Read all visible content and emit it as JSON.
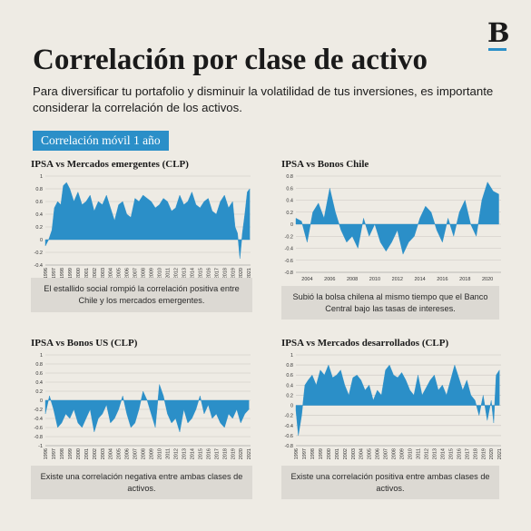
{
  "brand": {
    "logo_letter": "B",
    "accent": "#2b8fc8"
  },
  "header": {
    "title": "Correlación por clase de activo",
    "subtitle": "Para diversificar tu portafolio y disminuir la volatilidad de tus inversiones, es importante considerar la correlación de los activos.",
    "badge": "Correlación móvil 1 año"
  },
  "colors": {
    "bar": "#2b8fc8",
    "background": "#eeebe4",
    "note_bg": "#dcd9d3"
  },
  "notes": {
    "em": "El estallido social rompió la correlación positiva entre Chile y los mercados emergentes.",
    "chile": "Subió la bolsa chilena al mismo tiempo que el Banco Central bajo las tasas de intereses.",
    "us": "Existe una correlación negativa entre ambas clases de activos.",
    "dev": "Existe una correlación positiva entre ambas clases de activos."
  },
  "chart_data": [
    {
      "id": "em",
      "type": "area",
      "title": "IPSA vs Mercados emergentes (CLP)",
      "yticks": [
        -0.4,
        -0.2,
        0,
        0.2,
        0.4,
        0.6,
        0.8,
        1
      ],
      "ylim": [
        -0.4,
        1
      ],
      "xlim": [
        1996,
        2021.2
      ],
      "xticks": [
        "1996",
        "1997",
        "1998",
        "1999",
        "2000",
        "2001",
        "2002",
        "2003",
        "2004",
        "2005",
        "2006",
        "2007",
        "2008",
        "2009",
        "2010",
        "2011",
        "2012",
        "2013",
        "2014",
        "2015",
        "2016",
        "2017",
        "2018",
        "2019",
        "2020",
        "2021"
      ],
      "x": [
        1996.0,
        1996.4,
        1996.8,
        1997.1,
        1997.5,
        1997.9,
        1998.2,
        1998.6,
        1999.0,
        1999.5,
        2000.0,
        2000.5,
        2001.0,
        2001.5,
        2002.0,
        2002.5,
        2003.0,
        2003.5,
        2004.0,
        2004.5,
        2005.0,
        2005.5,
        2006.0,
        2006.5,
        2007.0,
        2007.5,
        2008.0,
        2008.5,
        2009.0,
        2009.5,
        2010.0,
        2010.5,
        2011.0,
        2011.5,
        2012.0,
        2012.5,
        2013.0,
        2013.5,
        2014.0,
        2014.5,
        2015.0,
        2015.5,
        2016.0,
        2016.5,
        2017.0,
        2017.5,
        2018.0,
        2018.5,
        2019.0,
        2019.3,
        2019.6,
        2019.9,
        2020.2,
        2020.5,
        2020.8,
        2021.1
      ],
      "values": [
        -0.1,
        0.0,
        0.15,
        0.5,
        0.6,
        0.55,
        0.85,
        0.9,
        0.8,
        0.6,
        0.75,
        0.55,
        0.6,
        0.7,
        0.45,
        0.6,
        0.55,
        0.7,
        0.5,
        0.3,
        0.55,
        0.6,
        0.4,
        0.35,
        0.65,
        0.6,
        0.7,
        0.65,
        0.6,
        0.5,
        0.55,
        0.65,
        0.6,
        0.45,
        0.5,
        0.7,
        0.55,
        0.6,
        0.75,
        0.55,
        0.5,
        0.6,
        0.65,
        0.45,
        0.4,
        0.6,
        0.7,
        0.5,
        0.6,
        0.2,
        0.1,
        -0.3,
        0.1,
        0.4,
        0.75,
        0.8
      ]
    },
    {
      "id": "chile",
      "type": "area",
      "title": "IPSA vs Bonos Chile",
      "yticks": [
        -0.8,
        -0.6,
        -0.4,
        -0.2,
        0,
        0.2,
        0.4,
        0.6,
        0.8
      ],
      "ylim": [
        -0.8,
        0.8
      ],
      "xlim": [
        2003,
        2021.2
      ],
      "xticks": [
        "2004",
        "2006",
        "2008",
        "2010",
        "2012",
        "2014",
        "2016",
        "2018",
        "2020"
      ],
      "xtick_values": [
        2004,
        2006,
        2008,
        2010,
        2012,
        2014,
        2016,
        2018,
        2020
      ],
      "x": [
        2003.0,
        2003.5,
        2004.0,
        2004.5,
        2005.0,
        2005.5,
        2006.0,
        2006.5,
        2007.0,
        2007.5,
        2008.0,
        2008.5,
        2009.0,
        2009.5,
        2010.0,
        2010.5,
        2011.0,
        2011.5,
        2012.0,
        2012.5,
        2013.0,
        2013.5,
        2014.0,
        2014.5,
        2015.0,
        2015.5,
        2016.0,
        2016.5,
        2017.0,
        2017.5,
        2018.0,
        2018.5,
        2019.0,
        2019.5,
        2020.0,
        2020.5,
        2021.0
      ],
      "values": [
        0.1,
        0.05,
        -0.3,
        0.2,
        0.35,
        0.1,
        0.6,
        0.2,
        -0.1,
        -0.3,
        -0.2,
        -0.4,
        0.1,
        -0.2,
        0.0,
        -0.3,
        -0.45,
        -0.3,
        -0.1,
        -0.5,
        -0.3,
        -0.2,
        0.1,
        0.3,
        0.2,
        -0.1,
        -0.3,
        0.1,
        -0.2,
        0.2,
        0.4,
        0.0,
        -0.2,
        0.4,
        0.7,
        0.55,
        0.5
      ]
    },
    {
      "id": "us",
      "type": "area",
      "title": "IPSA vs Bonos US (CLP)",
      "yticks": [
        -1,
        -0.8,
        -0.6,
        -0.4,
        -0.2,
        0,
        0.2,
        0.4,
        0.6,
        0.8,
        1
      ],
      "ylim": [
        -1,
        1
      ],
      "xlim": [
        1996,
        2021.2
      ],
      "xticks": [
        "1996",
        "1997",
        "1998",
        "1999",
        "2000",
        "2001",
        "2002",
        "2003",
        "2004",
        "2005",
        "2006",
        "2007",
        "2008",
        "2009",
        "2010",
        "2011",
        "2012",
        "2013",
        "2014",
        "2015",
        "2016",
        "2017",
        "2018",
        "2019",
        "2020",
        "2021"
      ],
      "x": [
        1996.0,
        1996.5,
        1997.0,
        1997.5,
        1998.0,
        1998.5,
        1999.0,
        1999.5,
        2000.0,
        2000.5,
        2001.0,
        2001.5,
        2002.0,
        2002.5,
        2003.0,
        2003.5,
        2004.0,
        2004.5,
        2005.0,
        2005.5,
        2006.0,
        2006.5,
        2007.0,
        2007.5,
        2008.0,
        2008.5,
        2009.0,
        2009.5,
        2010.0,
        2010.5,
        2011.0,
        2011.5,
        2012.0,
        2012.5,
        2013.0,
        2013.5,
        2014.0,
        2014.5,
        2015.0,
        2015.5,
        2016.0,
        2016.5,
        2017.0,
        2017.5,
        2018.0,
        2018.5,
        2019.0,
        2019.5,
        2020.0,
        2020.5,
        2021.0
      ],
      "values": [
        -0.3,
        0.1,
        -0.2,
        -0.6,
        -0.5,
        -0.3,
        -0.4,
        -0.2,
        -0.5,
        -0.6,
        -0.4,
        -0.2,
        -0.7,
        -0.4,
        -0.3,
        -0.1,
        -0.5,
        -0.4,
        -0.2,
        0.1,
        -0.3,
        -0.6,
        -0.5,
        -0.2,
        0.2,
        0.0,
        -0.3,
        -0.6,
        0.35,
        0.1,
        -0.3,
        -0.5,
        -0.4,
        -0.7,
        -0.2,
        -0.5,
        -0.4,
        -0.2,
        0.1,
        -0.3,
        -0.1,
        -0.4,
        -0.3,
        -0.5,
        -0.6,
        -0.3,
        -0.4,
        -0.2,
        -0.5,
        -0.3,
        -0.2
      ]
    },
    {
      "id": "dev",
      "type": "area",
      "title": "IPSA vs Mercados desarrollados (CLP)",
      "yticks": [
        -0.8,
        -0.6,
        -0.4,
        -0.2,
        0,
        0.2,
        0.4,
        0.6,
        0.8,
        1
      ],
      "ylim": [
        -0.8,
        1
      ],
      "xlim": [
        1996,
        2021.2
      ],
      "xticks": [
        "1996",
        "1997",
        "1998",
        "1999",
        "2000",
        "2001",
        "2002",
        "2003",
        "2004",
        "2005",
        "2006",
        "2007",
        "2008",
        "2009",
        "2010",
        "2011",
        "2012",
        "2013",
        "2014",
        "2015",
        "2016",
        "2017",
        "2018",
        "2019",
        "2020",
        "2021"
      ],
      "x": [
        1996.0,
        1996.3,
        1996.7,
        1997.1,
        1997.5,
        1998.0,
        1998.5,
        1999.0,
        1999.5,
        2000.0,
        2000.5,
        2001.0,
        2001.5,
        2002.0,
        2002.5,
        2003.0,
        2003.5,
        2004.0,
        2004.5,
        2005.0,
        2005.5,
        2006.0,
        2006.5,
        2007.0,
        2007.5,
        2008.0,
        2008.5,
        2009.0,
        2009.5,
        2010.0,
        2010.5,
        2011.0,
        2011.5,
        2012.0,
        2012.5,
        2013.0,
        2013.5,
        2014.0,
        2014.5,
        2015.0,
        2015.5,
        2016.0,
        2016.5,
        2017.0,
        2017.5,
        2018.0,
        2018.5,
        2019.0,
        2019.5,
        2020.0,
        2020.3,
        2020.6,
        2021.0
      ],
      "values": [
        -0.1,
        -0.6,
        -0.2,
        0.4,
        0.5,
        0.6,
        0.4,
        0.7,
        0.6,
        0.8,
        0.55,
        0.6,
        0.7,
        0.4,
        0.2,
        0.55,
        0.6,
        0.5,
        0.3,
        0.4,
        0.1,
        0.3,
        0.2,
        0.7,
        0.8,
        0.6,
        0.55,
        0.65,
        0.5,
        0.3,
        0.2,
        0.6,
        0.2,
        0.35,
        0.5,
        0.6,
        0.3,
        0.4,
        0.2,
        0.5,
        0.8,
        0.55,
        0.3,
        0.5,
        0.2,
        0.1,
        -0.2,
        0.2,
        -0.3,
        0.1,
        -0.35,
        0.6,
        0.7
      ]
    }
  ]
}
